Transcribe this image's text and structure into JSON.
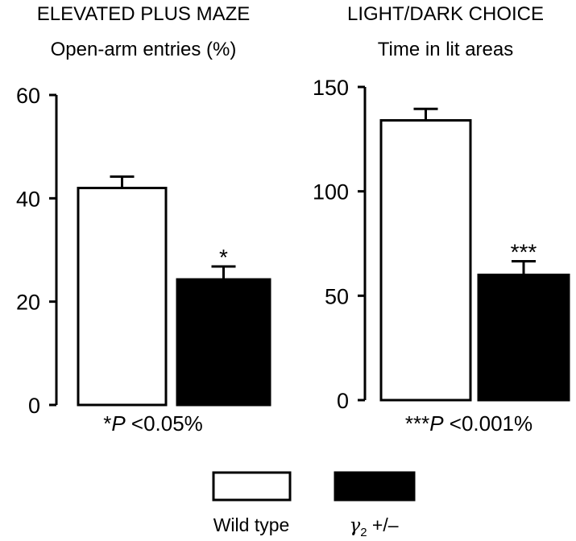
{
  "chart_data": [
    {
      "type": "bar",
      "title": "ELEVATED PLUS MAZE",
      "subtitle": "Open-arm entries (%)",
      "categories": [
        "Wild type",
        "γ2 +/–"
      ],
      "values": [
        42,
        24.3
      ],
      "errors": [
        2.2,
        2.5
      ],
      "significance": [
        "",
        "*"
      ],
      "ylim": [
        0,
        60
      ],
      "yticks": [
        "0",
        "20",
        "40",
        "60"
      ],
      "footnote": {
        "stars": "*",
        "p": "P",
        "text": " <0.05%"
      }
    },
    {
      "type": "bar",
      "title": "LIGHT/DARK CHOICE",
      "subtitle": "Time in lit areas",
      "categories": [
        "Wild type",
        "γ2 +/–"
      ],
      "values": [
        134,
        60
      ],
      "errors": [
        5.5,
        6.5
      ],
      "significance": [
        "",
        "***"
      ],
      "ylim": [
        0,
        150
      ],
      "yticks": [
        "0",
        "50",
        "100",
        "150"
      ],
      "footnote": {
        "stars": "***",
        "p": "P",
        "text": " <0.001%"
      }
    }
  ],
  "legend": {
    "wild_type": {
      "label": "Wild type",
      "color": "#ffffff"
    },
    "mutant": {
      "label_symbol": "γ",
      "label_sub": "2",
      "label_rest": " +/–",
      "color": "#000000"
    }
  }
}
